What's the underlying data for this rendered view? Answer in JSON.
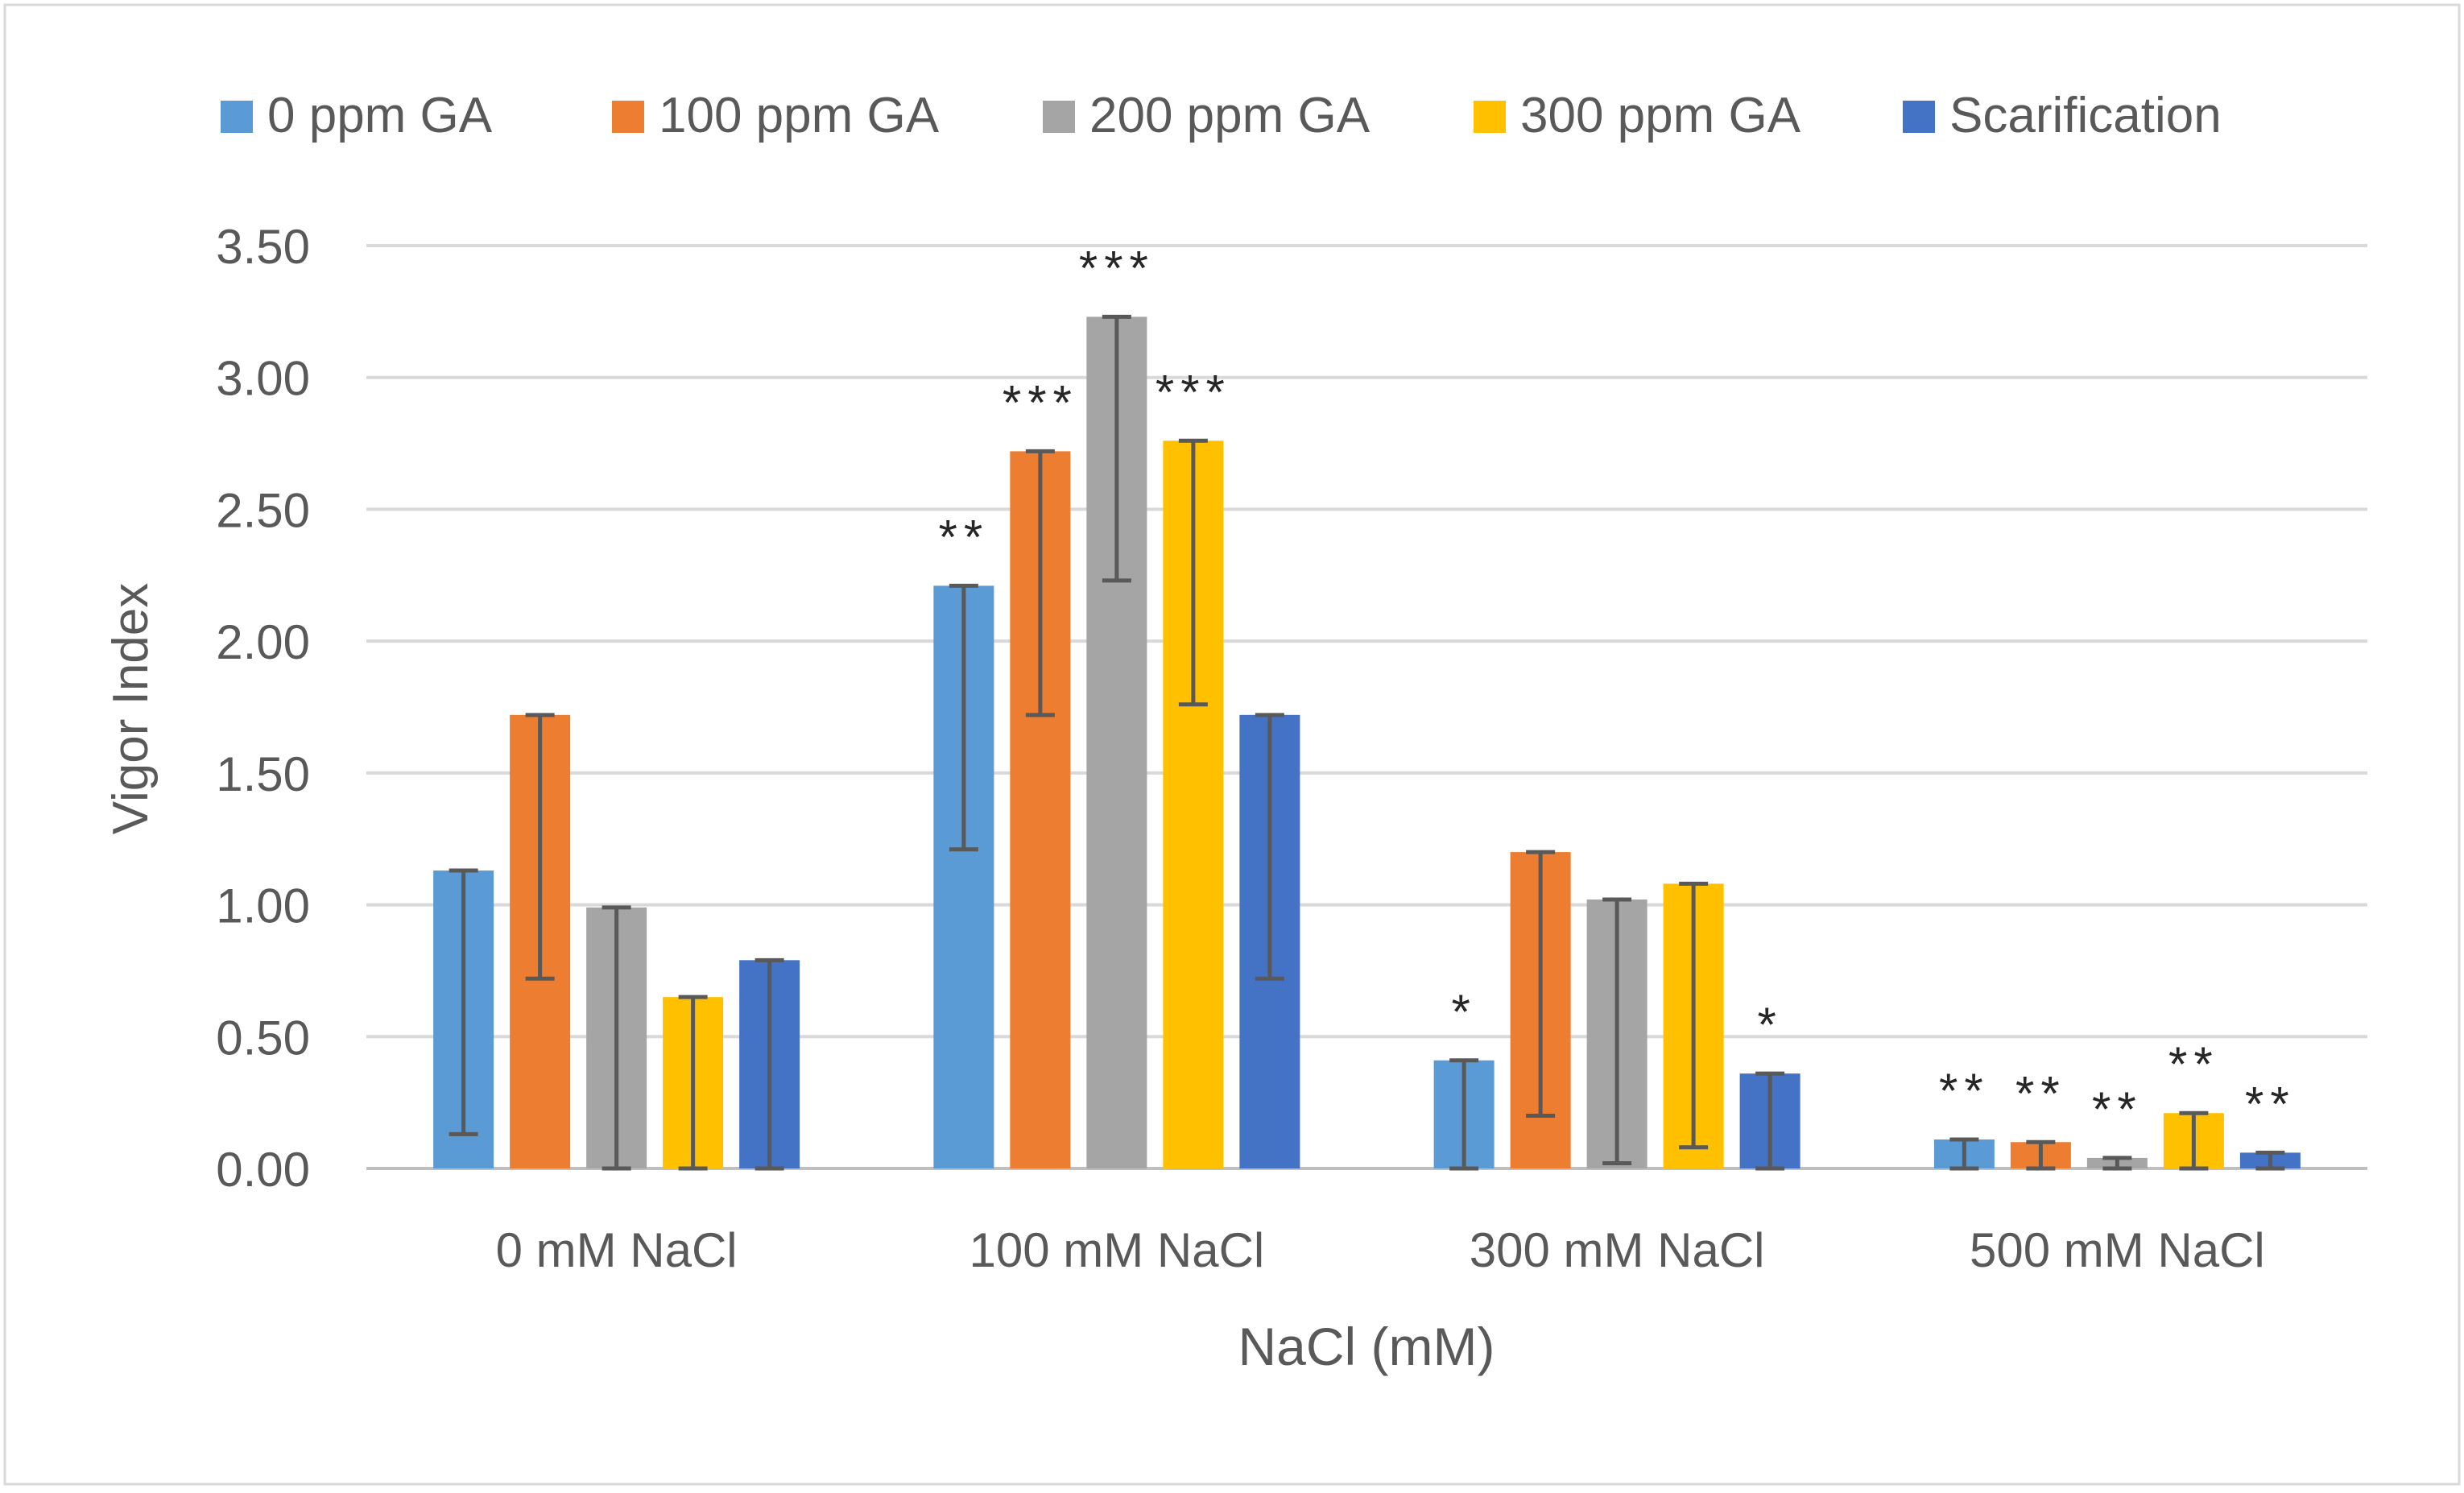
{
  "chart_data": {
    "type": "bar",
    "title": "",
    "xlabel": "NaCl (mM)",
    "ylabel": "Vigor Index",
    "ylim": [
      0,
      3.5
    ],
    "yticks": [
      "0.00",
      "0.50",
      "1.00",
      "1.50",
      "2.00",
      "2.50",
      "3.00",
      "3.50"
    ],
    "ytick_values": [
      0,
      0.5,
      1.0,
      1.5,
      2.0,
      2.5,
      3.0,
      3.5
    ],
    "grid": true,
    "legend_position": "top",
    "categories": [
      "0 mM NaCl",
      "100 mM NaCl",
      "300 mM NaCl",
      "500 mM NaCl"
    ],
    "series": [
      {
        "name": "0 ppm GA",
        "color": "#5B9BD5",
        "values": [
          1.13,
          2.21,
          0.41,
          0.11
        ],
        "errors": [
          1.0,
          1.0,
          0.41,
          0.11
        ],
        "annotations": [
          "",
          "**",
          "*",
          "**"
        ]
      },
      {
        "name": "100 ppm GA",
        "color": "#ED7D31",
        "values": [
          1.72,
          2.72,
          1.2,
          0.1
        ],
        "errors": [
          1.0,
          1.0,
          1.0,
          0.1
        ],
        "annotations": [
          "",
          "***",
          "",
          "**"
        ]
      },
      {
        "name": "200 ppm GA",
        "color": "#A5A5A5",
        "values": [
          0.99,
          3.23,
          1.02,
          0.04
        ],
        "errors": [
          0.99,
          1.0,
          1.0,
          0.04
        ],
        "annotations": [
          "",
          "***",
          "",
          "**"
        ]
      },
      {
        "name": "300 ppm GA",
        "color": "#FFC000",
        "values": [
          0.65,
          2.76,
          1.08,
          0.21
        ],
        "errors": [
          0.65,
          1.0,
          1.0,
          0.21
        ],
        "annotations": [
          "",
          "***",
          "",
          "**"
        ]
      },
      {
        "name": "Scarification",
        "color": "#4472C4",
        "values": [
          0.79,
          1.72,
          0.36,
          0.06
        ],
        "errors": [
          0.79,
          1.0,
          0.36,
          0.06
        ],
        "annotations": [
          "",
          "",
          "*",
          "**"
        ]
      }
    ]
  }
}
